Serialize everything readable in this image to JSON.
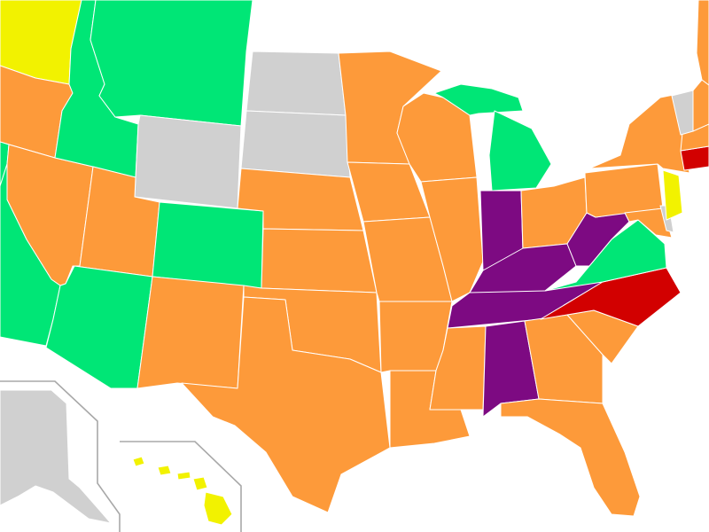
{
  "map": {
    "colors": {
      "orange": "#fd9a3a",
      "green": "#00e676",
      "gray": "#d0d0d0",
      "yellow": "#f2f200",
      "purple": "#7d0a82",
      "red": "#d20000",
      "border": "#ffffff",
      "inset_frame": "#a8a8a8"
    },
    "states": [
      {
        "name": "washington",
        "color": "yellow"
      },
      {
        "name": "oregon",
        "color": "orange"
      },
      {
        "name": "california",
        "color": "green"
      },
      {
        "name": "idaho",
        "color": "green"
      },
      {
        "name": "nevada",
        "color": "orange"
      },
      {
        "name": "montana",
        "color": "green"
      },
      {
        "name": "wyoming",
        "color": "gray"
      },
      {
        "name": "utah",
        "color": "orange"
      },
      {
        "name": "arizona",
        "color": "green"
      },
      {
        "name": "colorado",
        "color": "green"
      },
      {
        "name": "new-mexico",
        "color": "orange"
      },
      {
        "name": "north-dakota",
        "color": "gray"
      },
      {
        "name": "south-dakota",
        "color": "gray"
      },
      {
        "name": "nebraska",
        "color": "orange"
      },
      {
        "name": "kansas",
        "color": "orange"
      },
      {
        "name": "oklahoma",
        "color": "orange"
      },
      {
        "name": "texas",
        "color": "orange"
      },
      {
        "name": "minnesota",
        "color": "orange"
      },
      {
        "name": "iowa",
        "color": "orange"
      },
      {
        "name": "missouri",
        "color": "orange"
      },
      {
        "name": "arkansas",
        "color": "orange"
      },
      {
        "name": "louisiana",
        "color": "orange"
      },
      {
        "name": "wisconsin",
        "color": "orange"
      },
      {
        "name": "illinois",
        "color": "orange"
      },
      {
        "name": "michigan",
        "color": "green"
      },
      {
        "name": "indiana",
        "color": "purple"
      },
      {
        "name": "ohio",
        "color": "orange"
      },
      {
        "name": "kentucky",
        "color": "purple"
      },
      {
        "name": "tennessee",
        "color": "purple"
      },
      {
        "name": "mississippi",
        "color": "orange"
      },
      {
        "name": "alabama",
        "color": "purple"
      },
      {
        "name": "georgia",
        "color": "orange"
      },
      {
        "name": "florida",
        "color": "orange"
      },
      {
        "name": "south-carolina",
        "color": "orange"
      },
      {
        "name": "north-carolina",
        "color": "red"
      },
      {
        "name": "virginia",
        "color": "green"
      },
      {
        "name": "west-virginia",
        "color": "purple"
      },
      {
        "name": "pennsylvania",
        "color": "orange"
      },
      {
        "name": "new-york",
        "color": "orange"
      },
      {
        "name": "new-jersey",
        "color": "yellow"
      },
      {
        "name": "maryland",
        "color": "orange"
      },
      {
        "name": "delaware",
        "color": "gray"
      },
      {
        "name": "connecticut",
        "color": "red"
      },
      {
        "name": "massachusetts",
        "color": "orange"
      },
      {
        "name": "vermont",
        "color": "gray"
      },
      {
        "name": "new-hampshire",
        "color": "orange"
      },
      {
        "name": "maine",
        "color": "orange"
      },
      {
        "name": "alaska",
        "color": "gray"
      },
      {
        "name": "hawaii",
        "color": "yellow"
      }
    ]
  }
}
